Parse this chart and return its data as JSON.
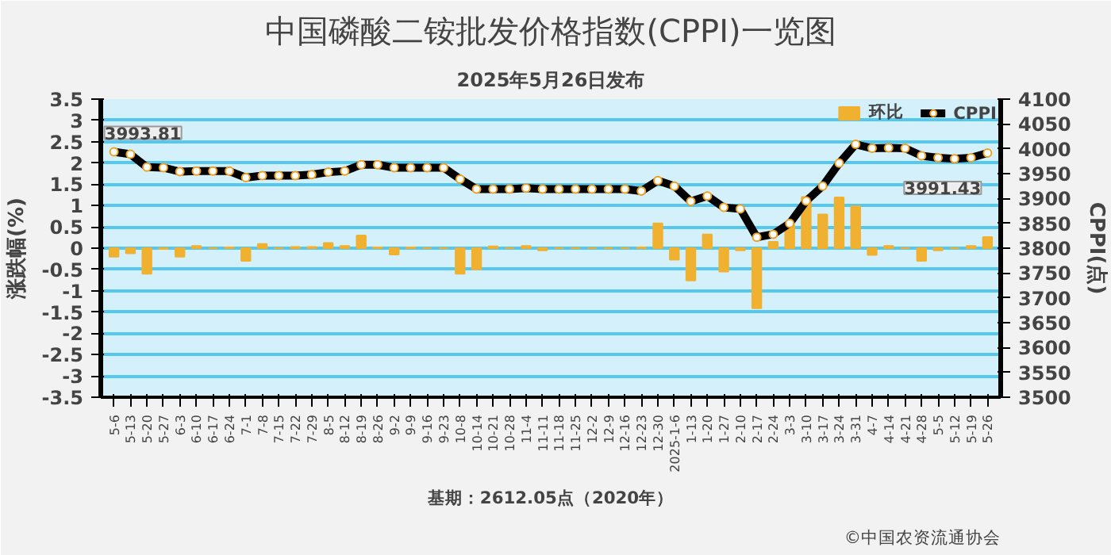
{
  "chart_data": {
    "type": "bar",
    "title": "中国磷酸二铵批发价格指数(CPPI)一览图",
    "subtitle": "2025年5月26日发布",
    "ylabel": "涨跌幅(%)",
    "y2label": "CPPI(点)",
    "categories": [
      "5-6",
      "5-13",
      "5-20",
      "5-27",
      "6-3",
      "6-10",
      "6-17",
      "6-24",
      "7-1",
      "7-8",
      "7-15",
      "7-22",
      "7-29",
      "8-5",
      "8-12",
      "8-19",
      "8-26",
      "9-2",
      "9-9",
      "9-16",
      "9-23",
      "10-8",
      "10-14",
      "10-21",
      "10-28",
      "11-4",
      "11-11",
      "11-18",
      "11-25",
      "12-2",
      "12-9",
      "12-16",
      "12-23",
      "12-30",
      "2025-1-6",
      "1-13",
      "1-20",
      "1-27",
      "2-10",
      "2-17",
      "2-24",
      "3-3",
      "3-10",
      "3-17",
      "3-24",
      "3-31",
      "4-7",
      "4-14",
      "4-21",
      "4-28",
      "5-5",
      "5-12",
      "5-19",
      "5-26"
    ],
    "series": [
      {
        "name": "环比",
        "color": "#f0b030",
        "values": [
          -0.2,
          -0.12,
          -0.6,
          -0.02,
          -0.2,
          0.05,
          0,
          0.02,
          -0.3,
          0.1,
          0,
          0.03,
          0.03,
          0.12,
          0.05,
          0.3,
          0.02,
          -0.15,
          0.02,
          0,
          0,
          -0.6,
          -0.5,
          0.04,
          0,
          0.05,
          -0.05,
          0,
          0,
          0,
          0,
          0,
          0.02,
          0.58,
          -0.27,
          -0.76,
          0.32,
          -0.55,
          -0.05,
          -1.41,
          0.15,
          0.55,
          1.2,
          0.79,
          1.19,
          0.98,
          -0.16,
          0.05,
          0,
          -0.3,
          -0.05,
          0,
          0.05,
          0.26
        ]
      },
      {
        "name": "CPPI",
        "type": "line",
        "axis": "y2",
        "color": "#000000",
        "values": [
          3993.81,
          3989,
          3963,
          3962,
          3954,
          3955,
          3955,
          3955,
          3942,
          3946,
          3946,
          3946,
          3948,
          3953,
          3955,
          3968,
          3968,
          3962,
          3962,
          3962,
          3962,
          3939,
          3919,
          3919,
          3919,
          3921,
          3919,
          3919,
          3919,
          3919,
          3919,
          3919,
          3915,
          3936,
          3925,
          3894,
          3905,
          3882,
          3879,
          3822,
          3828,
          3850,
          3895,
          3925,
          3971,
          4009,
          4001,
          4002,
          4001,
          3986,
          3982,
          3980,
          3982,
          3991.43
        ],
        "value_labels": [
          "3993.81",
          null,
          null,
          null,
          null,
          null,
          null,
          null,
          null,
          null,
          null,
          null,
          null,
          null,
          null,
          null,
          null,
          null,
          null,
          null,
          null,
          null,
          null,
          null,
          null,
          null,
          null,
          null,
          null,
          null,
          null,
          null,
          null,
          null,
          null,
          null,
          null,
          null,
          null,
          null,
          null,
          null,
          null,
          null,
          null,
          null,
          null,
          null,
          null,
          null,
          null,
          null,
          null,
          "3991.43"
        ]
      }
    ],
    "ylim": [
      -3.5,
      3.5
    ],
    "yticks": [
      3.5,
      3,
      2.5,
      2,
      1.5,
      1,
      0.5,
      0,
      -0.5,
      -1,
      -1.5,
      -2,
      -2.5,
      -3,
      -3.5
    ],
    "y2lim": [
      3500,
      4100
    ],
    "y2ticks": [
      3500,
      3550,
      3600,
      3650,
      3700,
      3750,
      3800,
      3850,
      3900,
      3950,
      4000,
      4050,
      4100
    ],
    "annotations": [
      "基期：2612.05点（2020年）",
      "©中国农资流通协会"
    ],
    "legend": "top right",
    "grid": "y",
    "marker": "circle"
  }
}
